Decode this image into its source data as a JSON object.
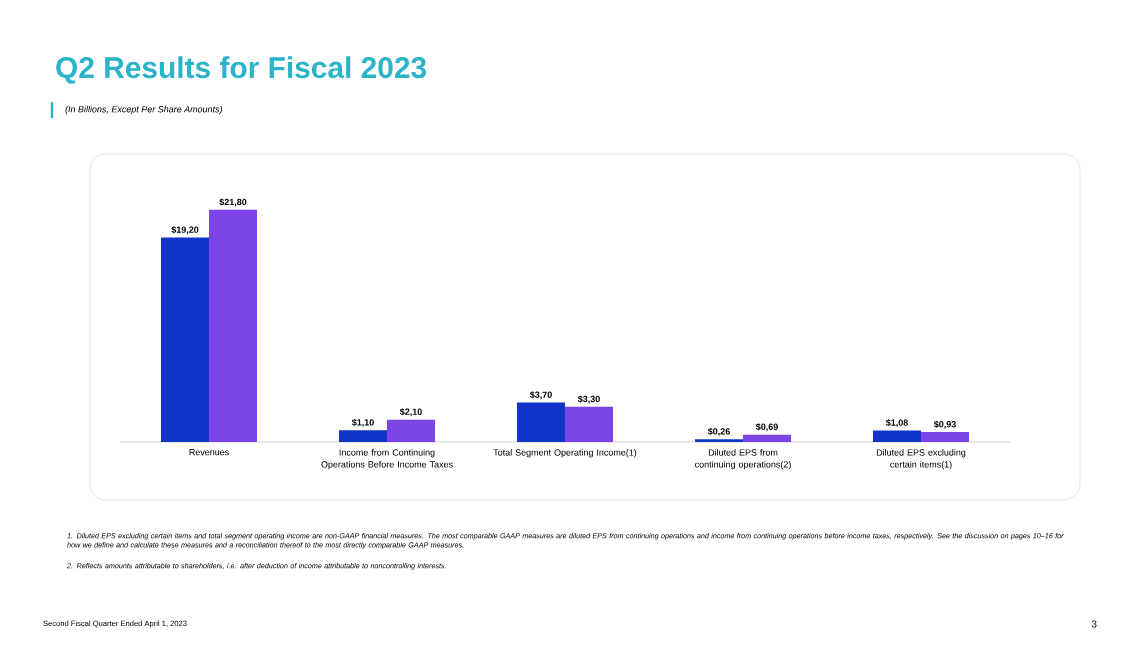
{
  "chart_data": {
    "type": "bar",
    "title": "Q2 Results for Fiscal 2023",
    "subtitle": "(In Billions, Except Per Share Amounts)",
    "categories": [
      "Revenues",
      "Income from Continuing Operations Before Income Taxes",
      "Total Segment Operating Income(1)",
      "Diluted EPS from continuing operations(2)",
      "Diluted EPS excluding certain items(1)"
    ],
    "series": [
      {
        "color": "#1034c8",
        "values": [
          19.2,
          1.1,
          3.7,
          0.26,
          1.08
        ],
        "value_labels": [
          "$19,20",
          "$1,10",
          "$3,70",
          "$0,26",
          "$1,08"
        ]
      },
      {
        "color": "#7b45e8",
        "values": [
          21.8,
          2.1,
          3.3,
          0.69,
          0.93
        ],
        "value_labels": [
          "$21,80",
          "$2,10",
          "$3,30",
          "$0,69",
          "$0,93"
        ]
      }
    ],
    "tick_labels": "x",
    "annotations": [
      "1. Diluted EPS excluding certain items and total segment operating income are non-GAAP financial measures. The most comparable GAAP measures are diluted EPS from continuing operations and income from continuing operations before income taxes, respectively. See the discussion on pages 10–16 for how we define and calculate these measures and a reconciliation thereof to the most directly comparable GAAP measures.",
      "2. Reflects amounts attributable to shareholders, i.e. after deduction of income attributable to noncontrolling interests.",
      "Second Fiscal Quarter Ended April 1, 2023",
      "3"
    ]
  }
}
